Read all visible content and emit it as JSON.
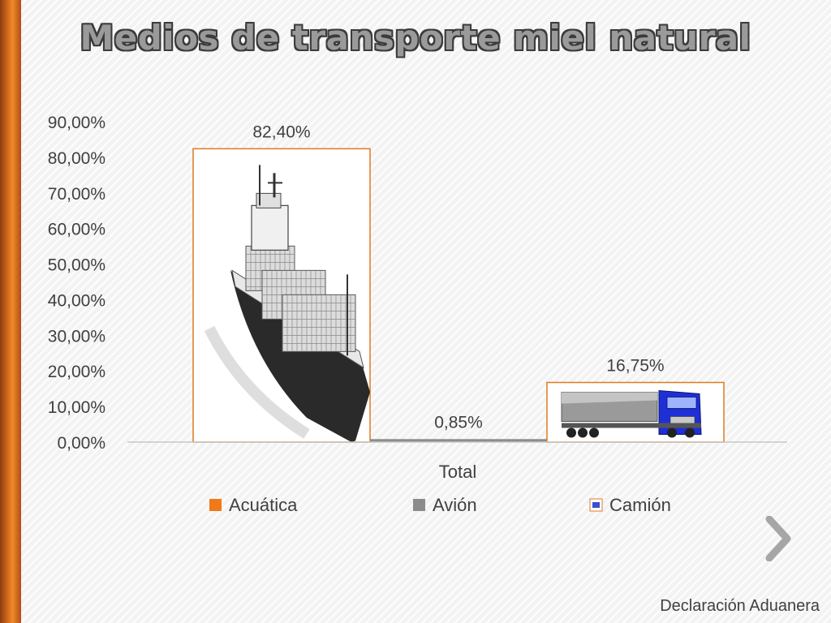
{
  "slide": {
    "title": "Medios de transporte miel natural",
    "footer": "Declaración Aduanera",
    "colors": {
      "accent_bar": "#e0751f",
      "axis_text": "#404040"
    }
  },
  "chart_data": {
    "type": "bar",
    "title": "",
    "xlabel": "",
    "ylabel": "",
    "categories": [
      "Total"
    ],
    "series": [
      {
        "name": "Acuática",
        "values": [
          82.4
        ],
        "label": "82,40%",
        "fill": "picture-ship",
        "legend_color": "#f07a1a"
      },
      {
        "name": "Avión",
        "values": [
          0.85
        ],
        "label": "0,85%",
        "fill": "solid",
        "legend_color": "#8c8c8c"
      },
      {
        "name": "Camión",
        "values": [
          16.75
        ],
        "label": "16,75%",
        "fill": "picture-truck",
        "legend_color": "#3a4fd0"
      }
    ],
    "ylim": [
      0,
      90
    ],
    "yticks": [
      "0,00%",
      "10,00%",
      "20,00%",
      "30,00%",
      "40,00%",
      "50,00%",
      "60,00%",
      "70,00%",
      "80,00%",
      "90,00%"
    ],
    "grid": false,
    "legend_position": "bottom"
  }
}
